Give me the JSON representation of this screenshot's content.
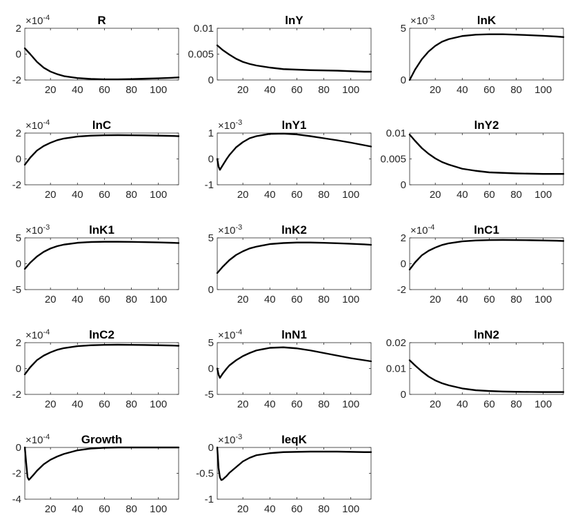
{
  "figure": {
    "line_color": "#000000",
    "axis_color": "#262626",
    "background": "#ffffff"
  },
  "chart_data": [
    {
      "type": "line",
      "title": "R",
      "xlim": [
        1,
        115
      ],
      "ylim": [
        -2,
        2
      ],
      "x_ticks": [
        20,
        40,
        60,
        80,
        100
      ],
      "y_ticks": [
        -2,
        0,
        2
      ],
      "y_tick_labels": [
        "-2",
        "0",
        "2"
      ],
      "exponent": "-4",
      "series": [
        {
          "x": [
            1,
            5,
            10,
            15,
            20,
            25,
            30,
            40,
            50,
            60,
            70,
            80,
            90,
            100,
            110,
            115
          ],
          "y": [
            0.45,
            0.0,
            -0.6,
            -1.05,
            -1.35,
            -1.55,
            -1.7,
            -1.85,
            -1.92,
            -1.95,
            -1.95,
            -1.93,
            -1.9,
            -1.87,
            -1.83,
            -1.8
          ]
        }
      ]
    },
    {
      "type": "line",
      "title": "lnY",
      "xlim": [
        1,
        115
      ],
      "ylim": [
        0,
        0.01
      ],
      "x_ticks": [
        20,
        40,
        60,
        80,
        100
      ],
      "y_ticks": [
        0,
        0.005,
        0.01
      ],
      "y_tick_labels": [
        "0",
        "0.005",
        "0.01"
      ],
      "exponent": "",
      "series": [
        {
          "x": [
            1,
            5,
            10,
            15,
            20,
            25,
            30,
            40,
            50,
            60,
            70,
            80,
            90,
            100,
            110,
            115
          ],
          "y": [
            0.0067,
            0.0058,
            0.0049,
            0.0041,
            0.0035,
            0.0031,
            0.0028,
            0.0024,
            0.0021,
            0.002,
            0.0019,
            0.00185,
            0.0018,
            0.0017,
            0.0016,
            0.0016
          ]
        }
      ]
    },
    {
      "type": "line",
      "title": "lnK",
      "xlim": [
        1,
        115
      ],
      "ylim": [
        0,
        5
      ],
      "x_ticks": [
        20,
        40,
        60,
        80,
        100
      ],
      "y_ticks": [
        0,
        5
      ],
      "y_tick_labels": [
        "0",
        "5"
      ],
      "exponent": "-3",
      "series": [
        {
          "x": [
            1,
            5,
            10,
            15,
            20,
            25,
            30,
            40,
            50,
            60,
            70,
            80,
            90,
            100,
            110,
            115
          ],
          "y": [
            0.0,
            1.0,
            2.0,
            2.75,
            3.3,
            3.7,
            3.95,
            4.25,
            4.38,
            4.42,
            4.42,
            4.38,
            4.33,
            4.27,
            4.2,
            4.15
          ]
        }
      ]
    },
    {
      "type": "line",
      "title": "lnC",
      "xlim": [
        1,
        115
      ],
      "ylim": [
        -2,
        2
      ],
      "x_ticks": [
        20,
        40,
        60,
        80,
        100
      ],
      "y_ticks": [
        -2,
        0,
        2
      ],
      "y_tick_labels": [
        "-2",
        "0",
        "2"
      ],
      "exponent": "-4",
      "series": [
        {
          "x": [
            1,
            5,
            10,
            15,
            20,
            25,
            30,
            40,
            50,
            60,
            70,
            80,
            90,
            100,
            110,
            115
          ],
          "y": [
            -0.45,
            0.1,
            0.65,
            1.0,
            1.25,
            1.45,
            1.58,
            1.73,
            1.8,
            1.83,
            1.84,
            1.83,
            1.82,
            1.8,
            1.78,
            1.76
          ]
        }
      ]
    },
    {
      "type": "line",
      "title": "lnY1",
      "xlim": [
        1,
        115
      ],
      "ylim": [
        -1,
        1
      ],
      "x_ticks": [
        20,
        40,
        60,
        80,
        100
      ],
      "y_ticks": [
        -1,
        0,
        1
      ],
      "y_tick_labels": [
        "-1",
        "0",
        "1"
      ],
      "exponent": "-3",
      "series": [
        {
          "x": [
            1,
            2,
            3,
            5,
            8,
            10,
            15,
            20,
            25,
            30,
            40,
            50,
            60,
            70,
            80,
            90,
            100,
            110,
            115
          ],
          "y": [
            0.0,
            -0.3,
            -0.42,
            -0.25,
            0.0,
            0.15,
            0.45,
            0.65,
            0.8,
            0.88,
            0.97,
            0.98,
            0.95,
            0.88,
            0.8,
            0.72,
            0.63,
            0.53,
            0.48
          ]
        }
      ]
    },
    {
      "type": "line",
      "title": "lnY2",
      "xlim": [
        1,
        115
      ],
      "ylim": [
        0,
        0.01
      ],
      "x_ticks": [
        20,
        40,
        60,
        80,
        100
      ],
      "y_ticks": [
        0,
        0.005,
        0.01
      ],
      "y_tick_labels": [
        "0",
        "0.005",
        "0.01"
      ],
      "exponent": "",
      "series": [
        {
          "x": [
            1,
            5,
            10,
            15,
            20,
            25,
            30,
            40,
            50,
            60,
            70,
            80,
            90,
            100,
            110,
            115
          ],
          "y": [
            0.0097,
            0.0085,
            0.0071,
            0.006,
            0.0051,
            0.0044,
            0.0039,
            0.0031,
            0.0027,
            0.0024,
            0.0023,
            0.0022,
            0.00215,
            0.0021,
            0.0021,
            0.0021
          ]
        }
      ]
    },
    {
      "type": "line",
      "title": "lnK1",
      "xlim": [
        1,
        115
      ],
      "ylim": [
        -5,
        5
      ],
      "x_ticks": [
        20,
        40,
        60,
        80,
        100
      ],
      "y_ticks": [
        -5,
        0,
        5
      ],
      "y_tick_labels": [
        "-5",
        "0",
        "5"
      ],
      "exponent": "-3",
      "series": [
        {
          "x": [
            1,
            5,
            10,
            15,
            20,
            25,
            30,
            40,
            50,
            60,
            70,
            80,
            90,
            100,
            110,
            115
          ],
          "y": [
            -1.0,
            0.2,
            1.4,
            2.3,
            2.95,
            3.4,
            3.7,
            4.05,
            4.2,
            4.25,
            4.25,
            4.22,
            4.18,
            4.12,
            4.05,
            4.0
          ]
        }
      ]
    },
    {
      "type": "line",
      "title": "lnK2",
      "xlim": [
        1,
        115
      ],
      "ylim": [
        0,
        5
      ],
      "x_ticks": [
        20,
        40,
        60,
        80,
        100
      ],
      "y_ticks": [
        0,
        5
      ],
      "y_tick_labels": [
        "0",
        "5"
      ],
      "exponent": "-3",
      "series": [
        {
          "x": [
            1,
            5,
            10,
            15,
            20,
            25,
            30,
            40,
            50,
            60,
            70,
            80,
            90,
            100,
            110,
            115
          ],
          "y": [
            1.6,
            2.2,
            2.85,
            3.35,
            3.7,
            3.98,
            4.15,
            4.4,
            4.5,
            4.55,
            4.55,
            4.52,
            4.48,
            4.43,
            4.37,
            4.33
          ]
        }
      ]
    },
    {
      "type": "line",
      "title": "lnC1",
      "xlim": [
        1,
        115
      ],
      "ylim": [
        -2,
        2
      ],
      "x_ticks": [
        20,
        40,
        60,
        80,
        100
      ],
      "y_ticks": [
        -2,
        0,
        2
      ],
      "y_tick_labels": [
        "-2",
        "0",
        "2"
      ],
      "exponent": "-4",
      "series": [
        {
          "x": [
            1,
            5,
            10,
            15,
            20,
            25,
            30,
            40,
            50,
            60,
            70,
            80,
            90,
            100,
            110,
            115
          ],
          "y": [
            -0.45,
            0.1,
            0.65,
            1.0,
            1.25,
            1.45,
            1.58,
            1.73,
            1.8,
            1.83,
            1.84,
            1.83,
            1.82,
            1.8,
            1.78,
            1.76
          ]
        }
      ]
    },
    {
      "type": "line",
      "title": "lnC2",
      "xlim": [
        1,
        115
      ],
      "ylim": [
        -2,
        2
      ],
      "x_ticks": [
        20,
        40,
        60,
        80,
        100
      ],
      "y_ticks": [
        -2,
        0,
        2
      ],
      "y_tick_labels": [
        "-2",
        "0",
        "2"
      ],
      "exponent": "-4",
      "series": [
        {
          "x": [
            1,
            5,
            10,
            15,
            20,
            25,
            30,
            40,
            50,
            60,
            70,
            80,
            90,
            100,
            110,
            115
          ],
          "y": [
            -0.45,
            0.1,
            0.65,
            1.0,
            1.25,
            1.45,
            1.58,
            1.73,
            1.8,
            1.83,
            1.84,
            1.83,
            1.82,
            1.8,
            1.78,
            1.76
          ]
        }
      ]
    },
    {
      "type": "line",
      "title": "lnN1",
      "xlim": [
        1,
        115
      ],
      "ylim": [
        -5,
        5
      ],
      "x_ticks": [
        20,
        40,
        60,
        80,
        100
      ],
      "y_ticks": [
        -5,
        0,
        5
      ],
      "y_tick_labels": [
        "-5",
        "0",
        "5"
      ],
      "exponent": "-4",
      "series": [
        {
          "x": [
            1,
            2,
            3,
            5,
            8,
            10,
            15,
            20,
            25,
            30,
            40,
            50,
            60,
            70,
            80,
            90,
            100,
            110,
            115
          ],
          "y": [
            0.0,
            -1.2,
            -1.8,
            -1.0,
            0.0,
            0.6,
            1.6,
            2.4,
            3.0,
            3.5,
            4.0,
            4.1,
            3.9,
            3.5,
            3.0,
            2.5,
            2.0,
            1.6,
            1.4
          ]
        }
      ]
    },
    {
      "type": "line",
      "title": "lnN2",
      "xlim": [
        1,
        115
      ],
      "ylim": [
        0,
        0.02
      ],
      "x_ticks": [
        20,
        40,
        60,
        80,
        100
      ],
      "y_ticks": [
        0,
        0.01,
        0.02
      ],
      "y_tick_labels": [
        "0",
        "0.01",
        "0.02"
      ],
      "exponent": "",
      "series": [
        {
          "x": [
            1,
            5,
            10,
            15,
            20,
            25,
            30,
            40,
            50,
            60,
            70,
            80,
            90,
            100,
            110,
            115
          ],
          "y": [
            0.0132,
            0.0112,
            0.0089,
            0.0069,
            0.0054,
            0.0043,
            0.0035,
            0.0023,
            0.0016,
            0.0013,
            0.0011,
            0.001,
            0.00095,
            0.0009,
            0.0009,
            0.0009
          ]
        }
      ]
    },
    {
      "type": "line",
      "title": "Growth",
      "xlim": [
        1,
        115
      ],
      "ylim": [
        -4,
        0
      ],
      "x_ticks": [
        20,
        40,
        60,
        80,
        100
      ],
      "y_ticks": [
        -4,
        -2,
        0
      ],
      "y_tick_labels": [
        "-4",
        "-2",
        "0"
      ],
      "exponent": "-4",
      "series": [
        {
          "x": [
            1,
            2,
            3,
            4,
            5,
            8,
            10,
            15,
            20,
            25,
            30,
            40,
            50,
            60,
            70,
            80,
            90,
            100,
            110,
            115
          ],
          "y": [
            0.0,
            -1.2,
            -2.3,
            -2.5,
            -2.4,
            -2.05,
            -1.8,
            -1.3,
            -0.95,
            -0.7,
            -0.5,
            -0.22,
            -0.08,
            -0.02,
            0.0,
            0.0,
            0.0,
            0.0,
            0.0,
            0.0
          ]
        }
      ]
    },
    {
      "type": "line",
      "title": "IeqK",
      "xlim": [
        1,
        115
      ],
      "ylim": [
        -1,
        0
      ],
      "x_ticks": [
        20,
        40,
        60,
        80,
        100
      ],
      "y_ticks": [
        -1,
        -0.5,
        0
      ],
      "y_tick_labels": [
        "-1",
        "-0.5",
        "0"
      ],
      "exponent": "-3",
      "series": [
        {
          "x": [
            1,
            2,
            3,
            4,
            5,
            8,
            10,
            15,
            20,
            25,
            30,
            40,
            50,
            60,
            70,
            80,
            90,
            100,
            110,
            115
          ],
          "y": [
            0.0,
            -0.4,
            -0.58,
            -0.63,
            -0.62,
            -0.55,
            -0.49,
            -0.38,
            -0.27,
            -0.2,
            -0.15,
            -0.11,
            -0.09,
            -0.085,
            -0.08,
            -0.08,
            -0.08,
            -0.085,
            -0.09,
            -0.09
          ]
        }
      ]
    }
  ]
}
